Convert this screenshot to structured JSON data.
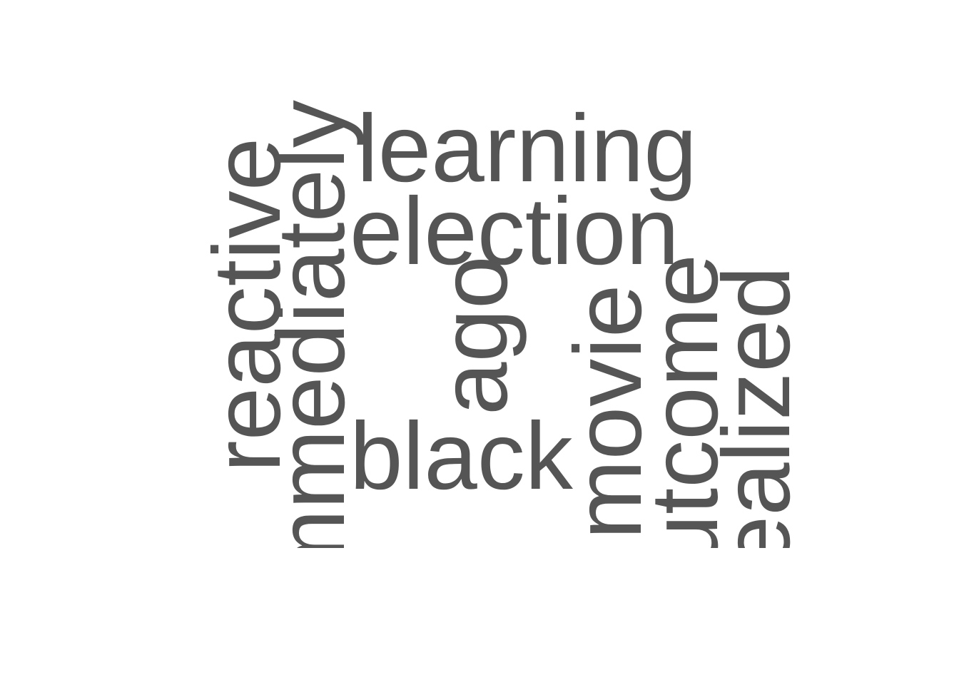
{
  "words": {
    "learning": "learning",
    "election": "election",
    "black": "black",
    "reactive": "reactive",
    "immediately": "immediately",
    "ago": "ago",
    "movie": "movie",
    "outcome": "outcome",
    "realized": "realized"
  },
  "colors": {
    "word": "#555555",
    "background": "#ffffff"
  }
}
